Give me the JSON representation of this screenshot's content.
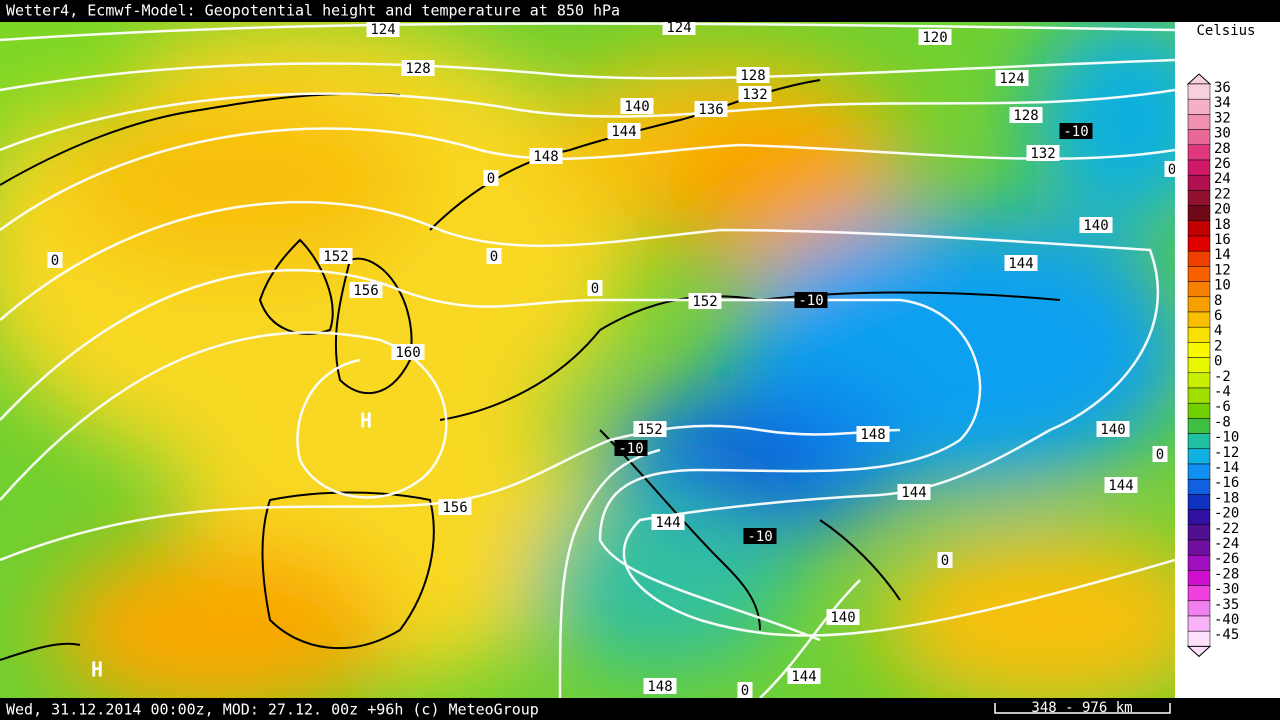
{
  "header": {
    "title": "Wetter4, Ecmwf-Model: Geopotential height and temperature at 850 hPa"
  },
  "footer": {
    "text": "Wed, 31.12.2014 00:00z, MOD: 27.12. 00z +96h (c) MeteoGroup",
    "scale": "348 - 976 km"
  },
  "legend": {
    "title": "Celsius",
    "items": [
      {
        "label": 36,
        "color": "#f8d0dc"
      },
      {
        "label": 34,
        "color": "#f4b0c4"
      },
      {
        "label": 32,
        "color": "#f090b0"
      },
      {
        "label": 30,
        "color": "#e86898"
      },
      {
        "label": 28,
        "color": "#e03880"
      },
      {
        "label": 26,
        "color": "#d01868"
      },
      {
        "label": 24,
        "color": "#b01050"
      },
      {
        "label": 22,
        "color": "#901030"
      },
      {
        "label": 20,
        "color": "#700818"
      },
      {
        "label": 18,
        "color": "#c00000"
      },
      {
        "label": 16,
        "color": "#e00000"
      },
      {
        "label": 14,
        "color": "#f04000"
      },
      {
        "label": 12,
        "color": "#f86000"
      },
      {
        "label": 10,
        "color": "#f88000"
      },
      {
        "label": 8,
        "color": "#f8a000"
      },
      {
        "label": 6,
        "color": "#f8c000"
      },
      {
        "label": 4,
        "color": "#f8e000"
      },
      {
        "label": 2,
        "color": "#f8f800"
      },
      {
        "label": 0,
        "color": "#e8f800"
      },
      {
        "label": -2,
        "color": "#c8f000"
      },
      {
        "label": -4,
        "color": "#a0e000"
      },
      {
        "label": -6,
        "color": "#70d000"
      },
      {
        "label": -8,
        "color": "#40c040"
      },
      {
        "label": -10,
        "color": "#20c0a0"
      },
      {
        "label": -12,
        "color": "#10b0e0"
      },
      {
        "label": -14,
        "color": "#1090f0"
      },
      {
        "label": -16,
        "color": "#1060e0"
      },
      {
        "label": -18,
        "color": "#1030c0"
      },
      {
        "label": -20,
        "color": "#3010a0"
      },
      {
        "label": -22,
        "color": "#501090"
      },
      {
        "label": -24,
        "color": "#7010a0"
      },
      {
        "label": -26,
        "color": "#a010c0"
      },
      {
        "label": -28,
        "color": "#d010d0"
      },
      {
        "label": -30,
        "color": "#f040e0"
      },
      {
        "label": -35,
        "color": "#f080f0"
      },
      {
        "label": -40,
        "color": "#f8b0f8"
      },
      {
        "label": -45,
        "color": "#fce0fc"
      }
    ]
  },
  "map": {
    "contour_labels": [
      124,
      124,
      120,
      128,
      128,
      132,
      140,
      136,
      144,
      124,
      128,
      -10,
      132,
      148,
      0,
      0,
      140,
      144,
      152,
      0,
      0,
      156,
      0,
      152,
      -10,
      160,
      "H",
      152,
      -10,
      148,
      140,
      0,
      144,
      144,
      156,
      144,
      -10,
      0,
      140,
      144,
      148,
      0,
      "H"
    ]
  }
}
